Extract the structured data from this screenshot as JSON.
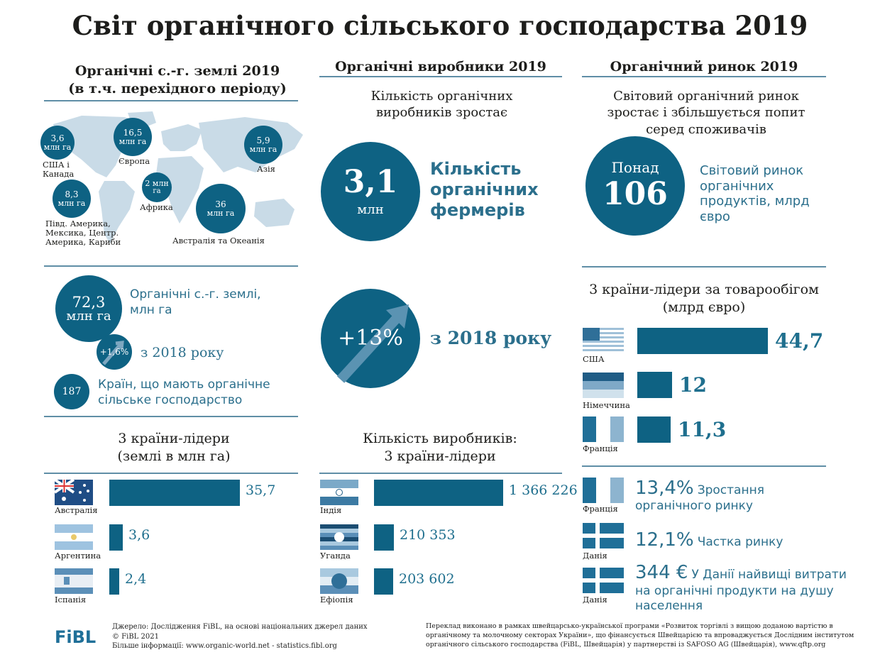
{
  "title": "Світ органічного сільського господарства 2019",
  "land": {
    "header_line1": "Органічні с.-г. землі 2019",
    "header_line2": "(в т.ч. перехідного періоду)",
    "regions": [
      {
        "value": "3,6",
        "unit": "млн га",
        "label": "США і Канада"
      },
      {
        "value": "16,5",
        "unit": "млн га",
        "label": "Європа"
      },
      {
        "value": "5,9",
        "unit": "млн га",
        "label": "Азія"
      },
      {
        "value": "8,3",
        "unit": "млн га",
        "label": "Півд. Америка, Мексика, Центр. Америка, Кариби"
      },
      {
        "value": "2 млн",
        "unit": "га",
        "label": "Африка"
      },
      {
        "value": "36",
        "unit": "млн га",
        "label": "Австралія та Океанія"
      }
    ],
    "total_value": "72,3",
    "total_unit": "млн га",
    "total_label": "Органічні с.-г. землі, млн га",
    "growth_value": "+1,6%",
    "growth_label": "з 2018 року",
    "countries_value": "187",
    "countries_label": "Країн, що мають органічне сільське господарство",
    "leaders_title_line1": "3 країни-лідери",
    "leaders_title_line2": "(землі в млн га)"
  },
  "producers": {
    "header": "Органічні виробники 2019",
    "intro": "Кількість органічних виробників зростає",
    "big_value": "3,1",
    "big_unit": "млн",
    "big_label": "Кількість органічних фермерів",
    "growth_value": "+13%",
    "growth_label": "з 2018 року",
    "leaders_title_line1": "Кількість виробників:",
    "leaders_title_line2": "3 країни-лідери"
  },
  "market": {
    "header": "Органічний ринок 2019",
    "intro": "Світовий органічний ринок зростає і збільшується попит серед споживачів",
    "big_prefix": "Понад",
    "big_value": "106",
    "big_label": "Світовий ринок органічних продуктів, млрд євро",
    "leaders_title_line1": "3 країни-лідери за товарообігом",
    "leaders_title_line2": "(млрд євро)",
    "stats": [
      {
        "country": "Франція",
        "value": "13,4%",
        "label": "Зростання органічного ринку"
      },
      {
        "country": "Данія",
        "value": "12,1%",
        "label": "Частка ринку"
      },
      {
        "country": "Данія",
        "value": "344 €",
        "label": "У Данії найвищі витрати на органічні продукти на душу населення"
      }
    ]
  },
  "chart_data": [
    {
      "type": "bar",
      "title": "3 країни-лідери (землі в млн га)",
      "categories": [
        "Австралія",
        "Аргентина",
        "Іспанія"
      ],
      "values": [
        35.7,
        3.6,
        2.4
      ],
      "labels": [
        "35,7",
        "3,6",
        "2,4"
      ]
    },
    {
      "type": "bar",
      "title": "Кількість виробників: 3 країни-лідери",
      "categories": [
        "Індія",
        "Уганда",
        "Ефіопія"
      ],
      "values": [
        1366226,
        210353,
        203602
      ],
      "labels": [
        "1 366 226",
        "210 353",
        "203 602"
      ]
    },
    {
      "type": "bar",
      "title": "3 країни-лідери за товарообігом (млрд євро)",
      "categories": [
        "США",
        "Німеччина",
        "Франція"
      ],
      "values": [
        44.7,
        12,
        11.3
      ],
      "labels": [
        "44,7",
        "12",
        "11,3"
      ]
    }
  ],
  "footer": {
    "logo": "FiBL",
    "source_line1": "Джерело: Дослідження FiBL, на основі національних джерел даних",
    "source_line2": "© FiBL 2021",
    "source_line3": "Більше інформації: www.organic-world.net - statistics.fibl.org",
    "translation_line1": "Переклад виконано в рамках швейцарсько-української програми «Розвиток торгівлі з вищою доданою вартістю в",
    "translation_line2": "органічному та молочному секторах України», що фінансується Швейцарією та впроваджується Дослідним інститутом",
    "translation_line3": "органічного сільського господарства (FiBL, Швейцарія) у партнерстві із SAFOSO AG (Швейцарія), www.qftp.org"
  },
  "colors": {
    "primary": "#0e6283",
    "text_teal": "#2b6f8c",
    "map": "#c9dbe7",
    "rule": "#5f8ea6"
  }
}
